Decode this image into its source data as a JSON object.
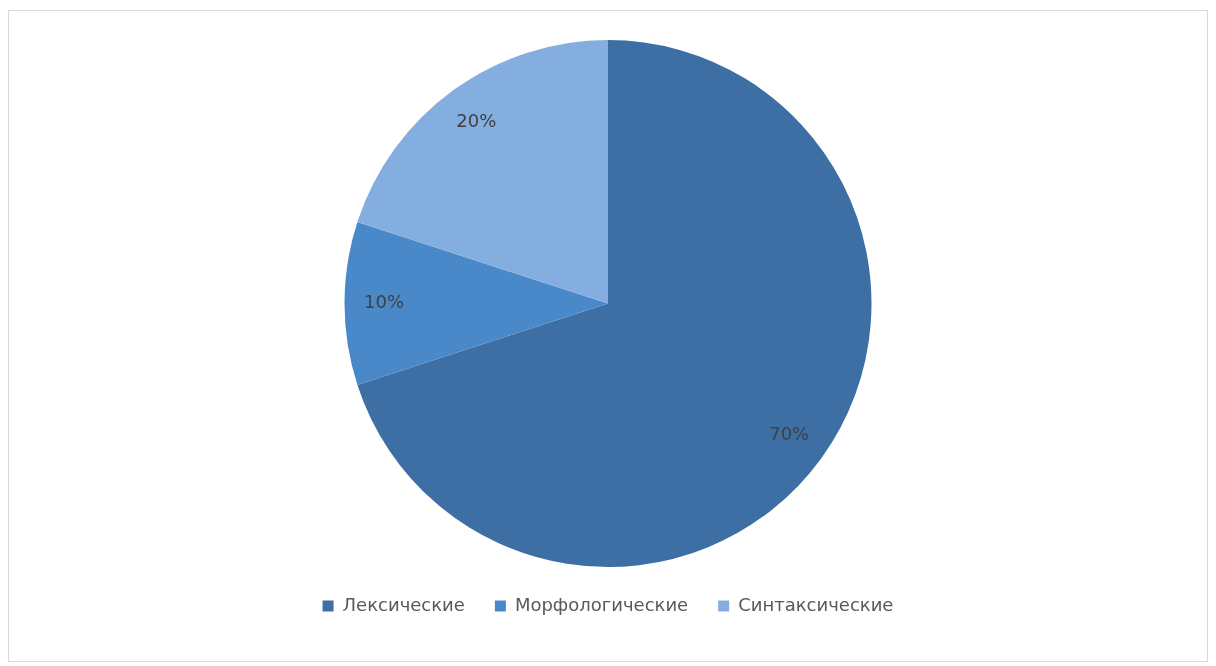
{
  "chart_data": {
    "type": "pie",
    "categories": [
      "Лексические",
      "Морфологические",
      "Синтаксические"
    ],
    "values": [
      70,
      10,
      20
    ],
    "colors": [
      "#3d6fa5",
      "#4a89c9",
      "#85aee0"
    ],
    "value_labels": [
      "70%",
      "10%",
      "20%"
    ],
    "legend": "bottom"
  }
}
